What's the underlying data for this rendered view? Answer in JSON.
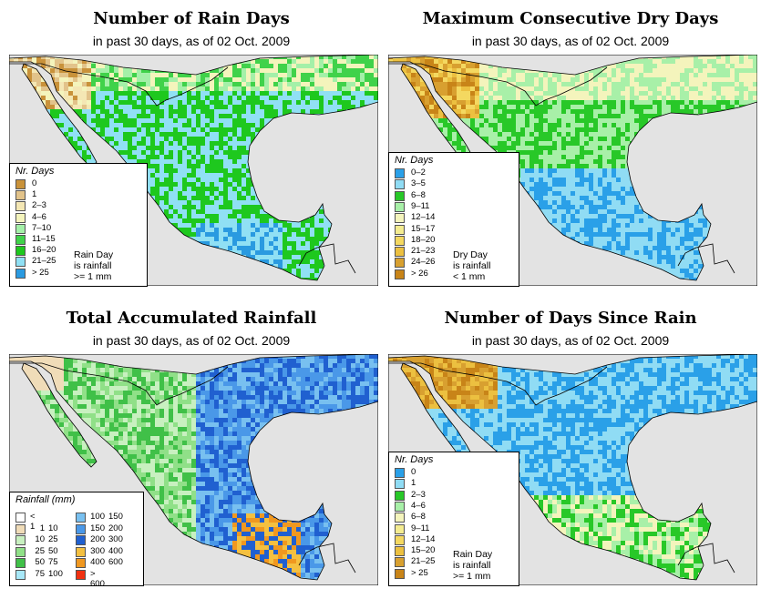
{
  "colors": {
    "land_background": "#e3e3e3",
    "water": "#e3e3e3",
    "border": "#000000",
    "rain_days": [
      "#c9923a",
      "#e2c38a",
      "#f4e7b4",
      "#f4f4bc",
      "#a4f0a8",
      "#40d24a",
      "#1ec81e",
      "#90e0f4",
      "#2a9ae0"
    ],
    "dry_days": [
      "#2aa0e8",
      "#90dcf4",
      "#28c828",
      "#a8f0a8",
      "#f4f4bc",
      "#f4ec90",
      "#f4d860",
      "#ecc040",
      "#d8a030",
      "#c88418"
    ],
    "rainfall": [
      "#ffffff",
      "#f0dcb8",
      "#c8f0c0",
      "#90e088",
      "#40c048",
      "#a8e8f8",
      "#78c0f0",
      "#4a98e8",
      "#2060d0",
      "#f4c040",
      "#f09820",
      "#f03010"
    ],
    "since_rain": [
      "#2aa0e8",
      "#90dcf4",
      "#28c828",
      "#a8f0a8",
      "#f4f4bc",
      "#f4ec90",
      "#f4d860",
      "#ecc040",
      "#d8a030",
      "#c88418"
    ]
  },
  "panels": {
    "rain_days": {
      "title": "Number of Rain Days",
      "subtitle": "in past 30 days, as of  02 Oct. 2009",
      "legend_title": "Nr. Days",
      "legend_labels": [
        "0",
        "1",
        "2–3",
        "4–6",
        "7–10",
        "11–15",
        "16–20",
        "21–25",
        "> 25"
      ],
      "note": [
        "Rain Day",
        "is rainfall",
        ">= 1 mm"
      ]
    },
    "dry_days": {
      "title": "Maximum Consecutive Dry Days",
      "subtitle": "in past 30 days, as of  02 Oct. 2009",
      "legend_title": "Nr. Days",
      "legend_labels": [
        "0–2",
        "3–5",
        "6–8",
        "9–11",
        "12–14",
        "15–17",
        "18–20",
        "21–23",
        "24–26",
        "> 26"
      ],
      "note": [
        "Dry Day",
        "is rainfall",
        "< 1 mm"
      ]
    },
    "rainfall": {
      "title": "Total Accumulated Rainfall",
      "subtitle": "in past 30 days, as of  02 Oct. 2009",
      "legend_title": "Rainfall (mm)",
      "legend_ranges": [
        [
          "< 1",
          ""
        ],
        [
          "1",
          "10"
        ],
        [
          "10",
          "25"
        ],
        [
          "25",
          "50"
        ],
        [
          "50",
          "75"
        ],
        [
          "75",
          "100"
        ],
        [
          "100",
          "150"
        ],
        [
          "150",
          "200"
        ],
        [
          "200",
          "300"
        ],
        [
          "300",
          "400"
        ],
        [
          "400",
          "600"
        ],
        [
          "> 600",
          ""
        ]
      ]
    },
    "since_rain": {
      "title": "Number of Days Since Rain",
      "subtitle": "in past 30 days, as of  02 Oct. 2009",
      "legend_title": "Nr. Days",
      "legend_labels": [
        "0",
        "1",
        "2–3",
        "4–6",
        "6–8",
        "9–11",
        "12–14",
        "15–20",
        "21–25",
        "> 25"
      ],
      "note": [
        "Rain Day",
        "is rainfall",
        ">= 1 mm"
      ]
    }
  }
}
